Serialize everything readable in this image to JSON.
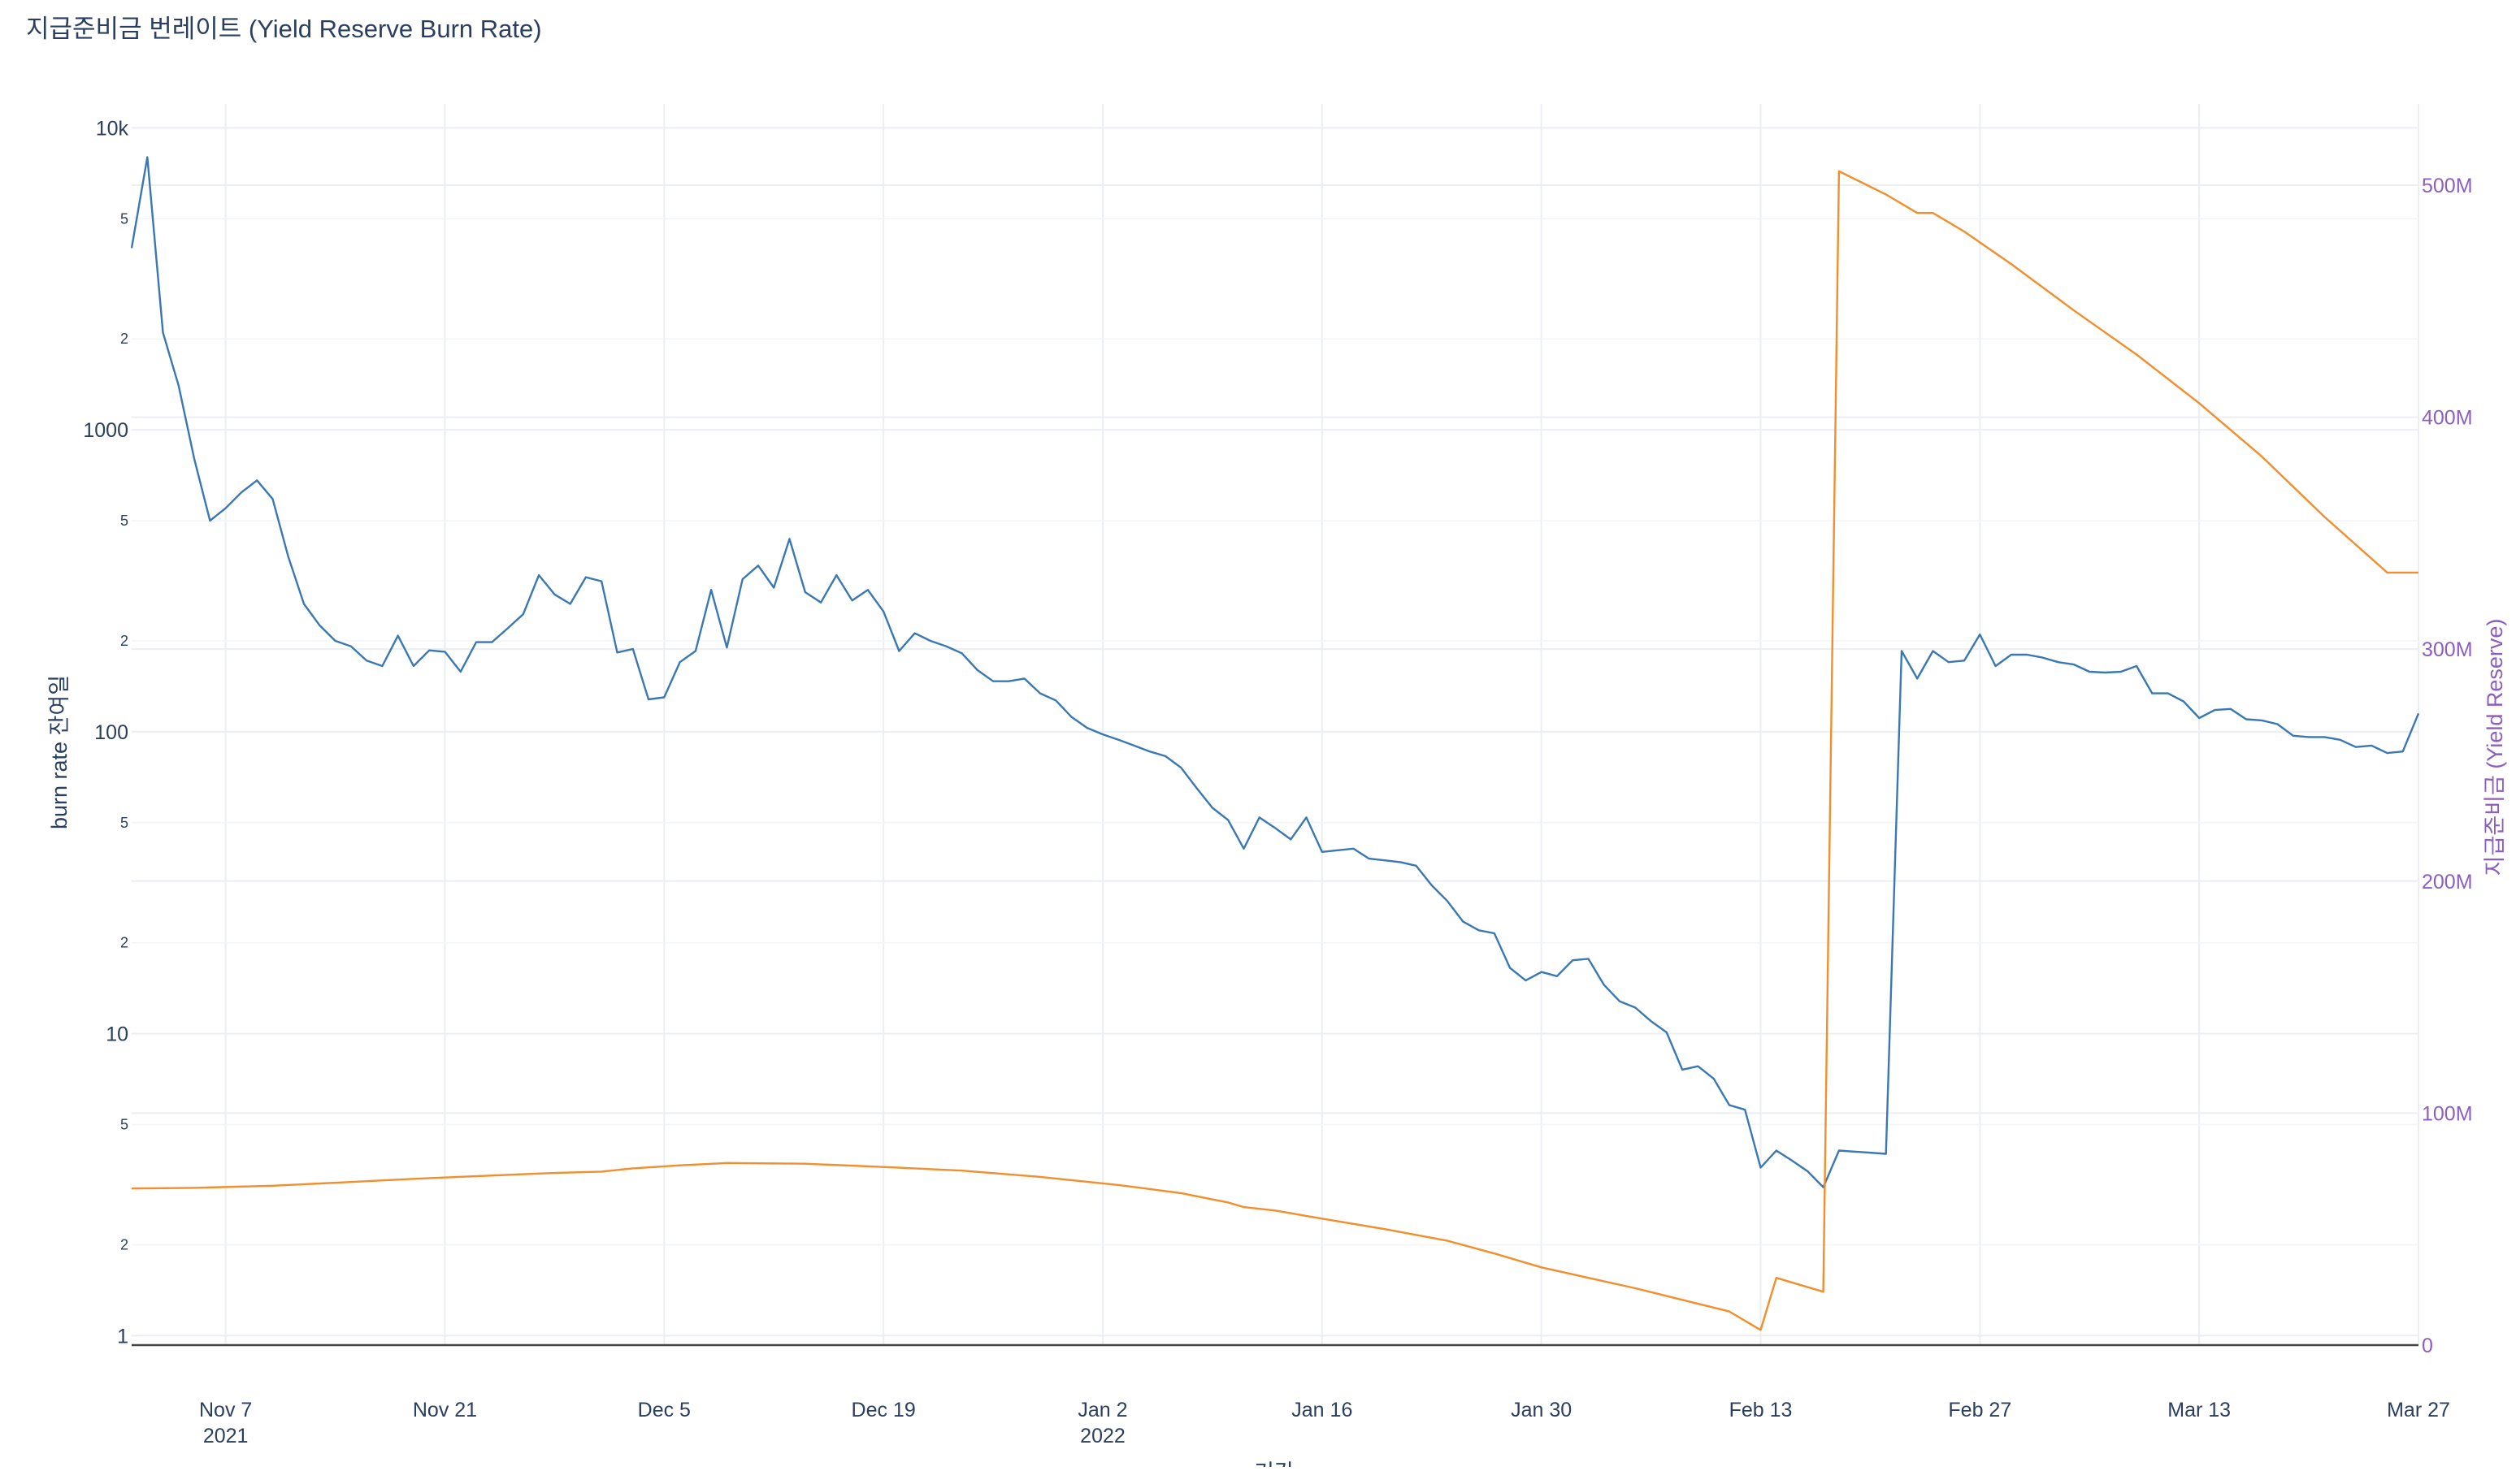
{
  "chart_data": {
    "type": "line",
    "title": "지급준비금 번레이트 (Yield Reserve Burn Rate)",
    "xlabel": "기간",
    "ylabel_left": "burn rate 잔여일",
    "ylabel_right": "지급준비금 (Yield Reserve)",
    "left_axis": {
      "scale": "log",
      "range": [
        0.93,
        12000
      ],
      "major_ticks": [
        {
          "value": 1,
          "label": "1"
        },
        {
          "value": 10,
          "label": "10"
        },
        {
          "value": 100,
          "label": "100"
        },
        {
          "value": 1000,
          "label": "1000"
        },
        {
          "value": 10000,
          "label": "10k"
        }
      ],
      "minor_ticks": [
        {
          "value": 2,
          "label": "2"
        },
        {
          "value": 5,
          "label": "5"
        },
        {
          "value": 20,
          "label": "2"
        },
        {
          "value": 50,
          "label": "5"
        },
        {
          "value": 200,
          "label": "2"
        },
        {
          "value": 500,
          "label": "5"
        },
        {
          "value": 2000,
          "label": "2"
        },
        {
          "value": 5000,
          "label": "5"
        }
      ]
    },
    "right_axis": {
      "scale": "linear",
      "range": [
        0,
        535000000
      ],
      "ticks": [
        {
          "value": 0,
          "label": "0"
        },
        {
          "value": 100000000,
          "label": "100M"
        },
        {
          "value": 200000000,
          "label": "200M"
        },
        {
          "value": 300000000,
          "label": "300M"
        },
        {
          "value": 400000000,
          "label": "400M"
        },
        {
          "value": 500000000,
          "label": "500M"
        }
      ],
      "color": "#8c5fbf"
    },
    "x_axis": {
      "type": "date",
      "range": [
        "2021-11-01",
        "2022-03-27"
      ],
      "ticks": [
        {
          "date": "2021-11-07",
          "label": "Nov 7",
          "sub": "2021"
        },
        {
          "date": "2021-11-21",
          "label": "Nov 21",
          "sub": ""
        },
        {
          "date": "2021-12-05",
          "label": "Dec 5",
          "sub": ""
        },
        {
          "date": "2021-12-19",
          "label": "Dec 19",
          "sub": ""
        },
        {
          "date": "2022-01-02",
          "label": "Jan 2",
          "sub": "2022"
        },
        {
          "date": "2022-01-16",
          "label": "Jan 16",
          "sub": ""
        },
        {
          "date": "2022-01-30",
          "label": "Jan 30",
          "sub": ""
        },
        {
          "date": "2022-02-13",
          "label": "Feb 13",
          "sub": ""
        },
        {
          "date": "2022-02-27",
          "label": "Feb 27",
          "sub": ""
        },
        {
          "date": "2022-03-13",
          "label": "Mar 13",
          "sub": ""
        },
        {
          "date": "2022-03-27",
          "label": "Mar 27",
          "sub": ""
        }
      ]
    },
    "grid": true,
    "series": [
      {
        "axis": "left",
        "color": "#3a78b4",
        "points": [
          [
            "2021-11-01",
            4000
          ],
          [
            "2021-11-02",
            8000
          ],
          [
            "2021-11-03",
            2100
          ],
          [
            "2021-11-04",
            1400
          ],
          [
            "2021-11-05",
            800
          ],
          [
            "2021-11-06",
            500
          ],
          [
            "2021-11-07",
            550
          ],
          [
            "2021-11-08",
            620
          ],
          [
            "2021-11-09",
            680
          ],
          [
            "2021-11-10",
            590
          ],
          [
            "2021-11-11",
            380
          ],
          [
            "2021-11-12",
            265
          ],
          [
            "2021-11-13",
            225
          ],
          [
            "2021-11-14",
            200
          ],
          [
            "2021-11-15",
            192
          ],
          [
            "2021-11-16",
            172
          ],
          [
            "2021-11-17",
            165
          ],
          [
            "2021-11-18",
            208
          ],
          [
            "2021-11-19",
            165
          ],
          [
            "2021-11-20",
            186
          ],
          [
            "2021-11-21",
            184
          ],
          [
            "2021-11-22",
            158
          ],
          [
            "2021-11-23",
            198
          ],
          [
            "2021-11-24",
            198
          ],
          [
            "2021-11-25",
            220
          ],
          [
            "2021-11-26",
            245
          ],
          [
            "2021-11-27",
            330
          ],
          [
            "2021-11-28",
            285
          ],
          [
            "2021-11-29",
            265
          ],
          [
            "2021-11-30",
            325
          ],
          [
            "2021-12-01",
            315
          ],
          [
            "2021-12-02",
            183
          ],
          [
            "2021-12-03",
            188
          ],
          [
            "2021-12-04",
            128
          ],
          [
            "2021-12-05",
            130
          ],
          [
            "2021-12-06",
            170
          ],
          [
            "2021-12-07",
            185
          ],
          [
            "2021-12-08",
            295
          ],
          [
            "2021-12-09",
            190
          ],
          [
            "2021-12-10",
            320
          ],
          [
            "2021-12-11",
            355
          ],
          [
            "2021-12-12",
            300
          ],
          [
            "2021-12-13",
            435
          ],
          [
            "2021-12-14",
            290
          ],
          [
            "2021-12-15",
            268
          ],
          [
            "2021-12-16",
            330
          ],
          [
            "2021-12-17",
            272
          ],
          [
            "2021-12-18",
            295
          ],
          [
            "2021-12-19",
            250
          ],
          [
            "2021-12-20",
            185
          ],
          [
            "2021-12-21",
            212
          ],
          [
            "2021-12-22",
            200
          ],
          [
            "2021-12-23",
            192
          ],
          [
            "2021-12-24",
            182
          ],
          [
            "2021-12-25",
            160
          ],
          [
            "2021-12-26",
            147
          ],
          [
            "2021-12-27",
            147
          ],
          [
            "2021-12-28",
            150
          ],
          [
            "2021-12-29",
            134
          ],
          [
            "2021-12-30",
            127
          ],
          [
            "2021-12-31",
            112
          ],
          [
            "2022-01-01",
            103
          ],
          [
            "2022-01-02",
            98
          ],
          [
            "2022-01-03",
            94
          ],
          [
            "2022-01-04",
            90
          ],
          [
            "2022-01-05",
            86
          ],
          [
            "2022-01-06",
            83
          ],
          [
            "2022-01-07",
            76
          ],
          [
            "2022-01-08",
            65
          ],
          [
            "2022-01-09",
            56
          ],
          [
            "2022-01-10",
            51
          ],
          [
            "2022-01-11",
            41
          ],
          [
            "2022-01-12",
            52
          ],
          [
            "2022-01-13",
            48
          ],
          [
            "2022-01-14",
            44
          ],
          [
            "2022-01-15",
            52
          ],
          [
            "2022-01-16",
            40
          ],
          [
            "2022-01-17",
            40.5
          ],
          [
            "2022-01-18",
            41
          ],
          [
            "2022-01-19",
            38
          ],
          [
            "2022-01-20",
            37.5
          ],
          [
            "2022-01-21",
            37
          ],
          [
            "2022-01-22",
            36
          ],
          [
            "2022-01-23",
            31
          ],
          [
            "2022-01-24",
            27.5
          ],
          [
            "2022-01-25",
            23.5
          ],
          [
            "2022-01-26",
            22
          ],
          [
            "2022-01-27",
            21.5
          ],
          [
            "2022-01-28",
            16.5
          ],
          [
            "2022-01-29",
            15
          ],
          [
            "2022-01-30",
            16
          ],
          [
            "2022-01-31",
            15.5
          ],
          [
            "2022-02-01",
            17.5
          ],
          [
            "2022-02-02",
            17.7
          ],
          [
            "2022-02-03",
            14.5
          ],
          [
            "2022-02-04",
            12.8
          ],
          [
            "2022-02-05",
            12.2
          ],
          [
            "2022-02-06",
            11
          ],
          [
            "2022-02-07",
            10.1
          ],
          [
            "2022-02-08",
            7.6
          ],
          [
            "2022-02-09",
            7.8
          ],
          [
            "2022-02-10",
            7.1
          ],
          [
            "2022-02-11",
            5.8
          ],
          [
            "2022-02-12",
            5.6
          ],
          [
            "2022-02-13",
            3.6
          ],
          [
            "2022-02-14",
            4.1
          ],
          [
            "2022-02-15",
            3.8
          ],
          [
            "2022-02-16",
            3.5
          ],
          [
            "2022-02-17",
            3.1
          ],
          [
            "2022-02-18",
            4.1
          ],
          [
            "2022-02-21",
            4.0
          ],
          [
            "2022-02-22",
            185
          ],
          [
            "2022-02-23",
            150
          ],
          [
            "2022-02-24",
            185
          ],
          [
            "2022-02-25",
            170
          ],
          [
            "2022-02-26",
            172
          ],
          [
            "2022-02-27",
            210
          ],
          [
            "2022-02-28",
            165
          ],
          [
            "2022-03-01",
            180
          ],
          [
            "2022-03-02",
            180
          ],
          [
            "2022-03-03",
            176
          ],
          [
            "2022-03-04",
            170
          ],
          [
            "2022-03-05",
            167
          ],
          [
            "2022-03-06",
            158
          ],
          [
            "2022-03-07",
            157
          ],
          [
            "2022-03-08",
            158
          ],
          [
            "2022-03-09",
            165
          ],
          [
            "2022-03-10",
            134
          ],
          [
            "2022-03-11",
            134
          ],
          [
            "2022-03-12",
            126
          ],
          [
            "2022-03-13",
            111
          ],
          [
            "2022-03-14",
            118
          ],
          [
            "2022-03-15",
            119
          ],
          [
            "2022-03-16",
            110
          ],
          [
            "2022-03-17",
            109
          ],
          [
            "2022-03-18",
            106
          ],
          [
            "2022-03-19",
            97
          ],
          [
            "2022-03-20",
            96
          ],
          [
            "2022-03-21",
            96
          ],
          [
            "2022-03-22",
            94
          ],
          [
            "2022-03-23",
            89
          ],
          [
            "2022-03-24",
            90
          ],
          [
            "2022-03-25",
            85
          ],
          [
            "2022-03-26",
            86
          ],
          [
            "2022-03-27",
            115
          ]
        ]
      },
      {
        "axis": "right",
        "color": "#f28e2b",
        "points": [
          [
            "2021-11-01",
            67500000
          ],
          [
            "2021-11-05",
            67800000
          ],
          [
            "2021-11-10",
            68700000
          ],
          [
            "2021-11-15",
            70300000
          ],
          [
            "2021-11-20",
            72000000
          ],
          [
            "2021-11-25",
            73400000
          ],
          [
            "2021-11-28",
            74200000
          ],
          [
            "2021-12-01",
            74800000
          ],
          [
            "2021-12-03",
            76200000
          ],
          [
            "2021-12-06",
            77500000
          ],
          [
            "2021-12-09",
            78500000
          ],
          [
            "2021-12-14",
            78200000
          ],
          [
            "2021-12-19",
            76800000
          ],
          [
            "2021-12-24",
            75200000
          ],
          [
            "2021-12-29",
            72500000
          ],
          [
            "2022-01-03",
            69000000
          ],
          [
            "2022-01-07",
            65500000
          ],
          [
            "2022-01-10",
            61500000
          ],
          [
            "2022-01-11",
            59500000
          ],
          [
            "2022-01-13",
            58000000
          ],
          [
            "2022-01-16",
            54500000
          ],
          [
            "2022-01-20",
            50000000
          ],
          [
            "2022-01-24",
            45000000
          ],
          [
            "2022-01-27",
            39500000
          ],
          [
            "2022-01-30",
            33500000
          ],
          [
            "2022-02-02",
            29000000
          ],
          [
            "2022-02-05",
            24500000
          ],
          [
            "2022-02-08",
            19500000
          ],
          [
            "2022-02-11",
            14500000
          ],
          [
            "2022-02-13",
            6500000
          ],
          [
            "2022-02-14",
            29000000
          ],
          [
            "2022-02-17",
            23000000
          ],
          [
            "2022-02-18",
            506000000
          ],
          [
            "2022-02-21",
            496000000
          ],
          [
            "2022-02-23",
            488000000
          ],
          [
            "2022-02-24",
            488000000
          ],
          [
            "2022-02-26",
            480000000
          ],
          [
            "2022-03-01",
            466000000
          ],
          [
            "2022-03-05",
            446000000
          ],
          [
            "2022-03-09",
            427000000
          ],
          [
            "2022-03-13",
            406000000
          ],
          [
            "2022-03-17",
            383000000
          ],
          [
            "2022-03-21",
            357000000
          ],
          [
            "2022-03-25",
            333000000
          ],
          [
            "2022-03-27",
            333000000
          ]
        ]
      }
    ]
  }
}
